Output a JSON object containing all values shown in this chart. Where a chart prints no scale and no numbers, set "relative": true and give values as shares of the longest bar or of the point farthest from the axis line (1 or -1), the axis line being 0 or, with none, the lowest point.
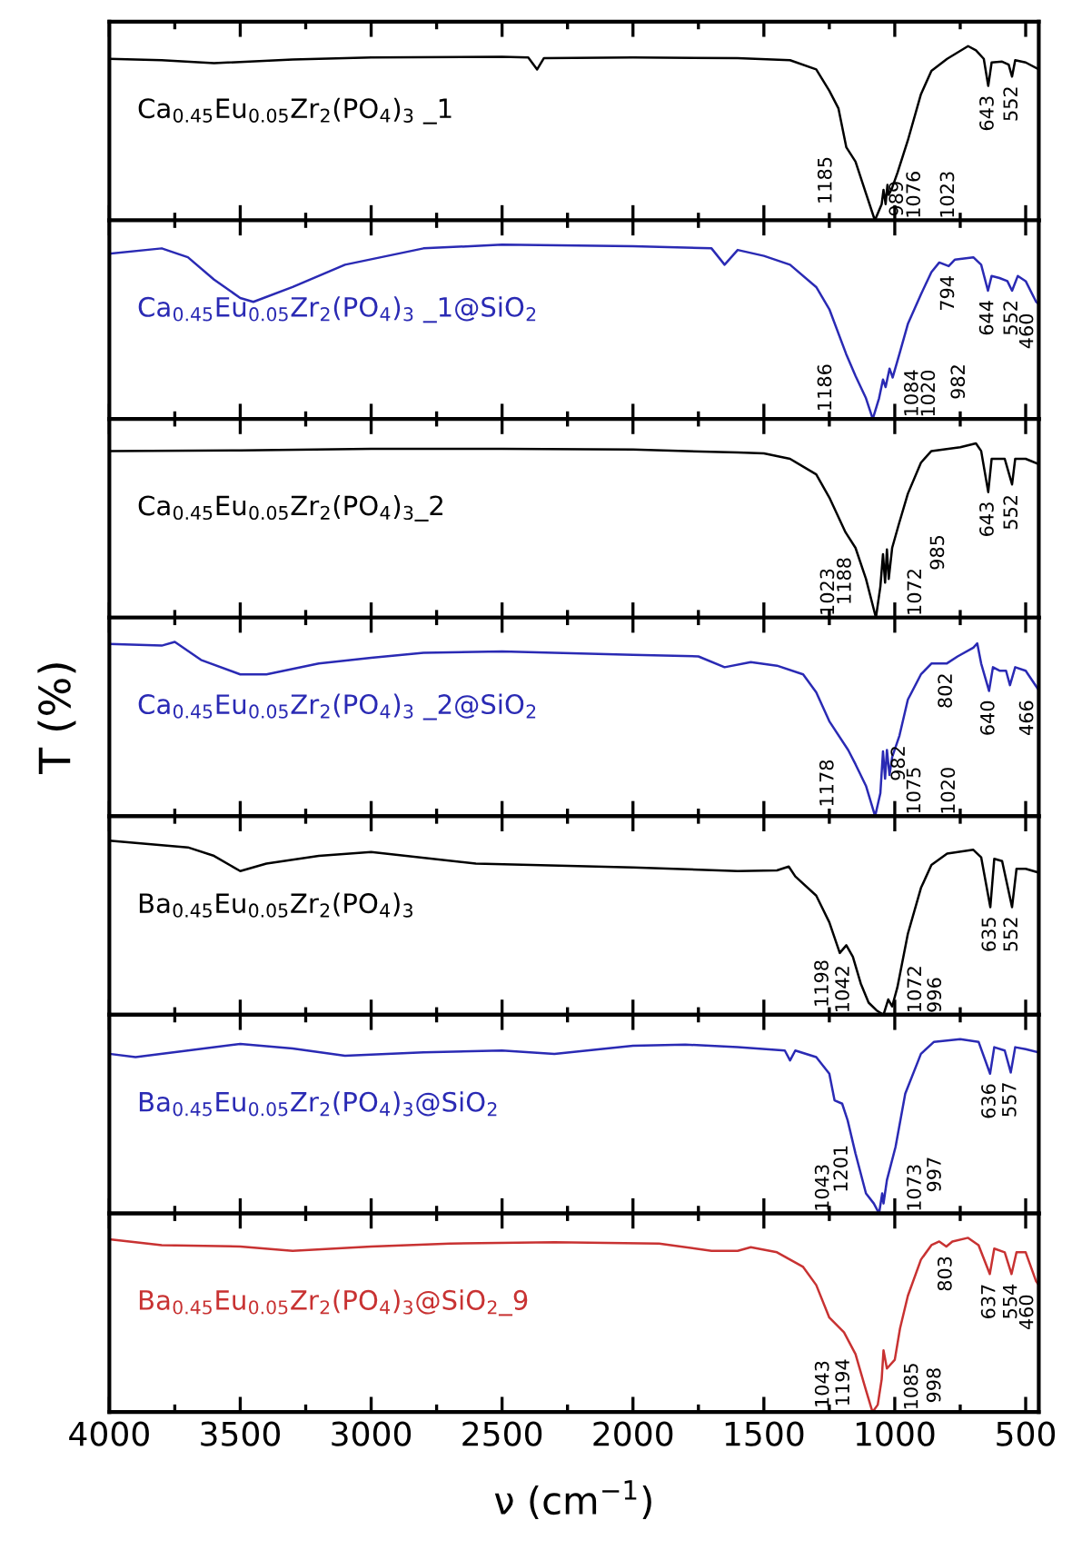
{
  "chart_data": [
    {
      "type": "line",
      "relative": true,
      "xlim": [
        4000,
        450
      ],
      "xticks": [
        4000,
        3500,
        3000,
        2500,
        2000,
        1500,
        1000,
        500
      ],
      "tick_labels": false,
      "x": [
        4000,
        3800,
        3600,
        3300,
        3000,
        2500,
        2400,
        2366,
        2340,
        2000,
        1600,
        1400,
        1300,
        1250,
        1215,
        1185,
        1150,
        1110,
        1076,
        1050,
        1043,
        1035,
        1028,
        1023,
        1010,
        989,
        950,
        900,
        860,
        800,
        720,
        690,
        660,
        643,
        630,
        590,
        565,
        552,
        540,
        500,
        450
      ],
      "series": [
        {
          "name": "Ca$_{0.45}$Eu$_{0.05}$Zr$_{2}$(PO$_{4}$)$_{3}$ _1",
          "color": "#000000",
          "values": [
            0.927,
            0.919,
            0.902,
            0.923,
            0.935,
            0.939,
            0.935,
            0.866,
            0.931,
            0.935,
            0.931,
            0.919,
            0.866,
            0.744,
            0.642,
            0.419,
            0.337,
            0.154,
            0,
            0.093,
            0.175,
            0.093,
            0.203,
            0.146,
            0.187,
            0.276,
            0.459,
            0.724,
            0.858,
            0.927,
            1,
            0.976,
            0.927,
            0.772,
            0.906,
            0.911,
            0.894,
            0.825,
            0.919,
            0.906,
            0.866
          ]
        }
      ],
      "annotations": [
        {
          "text": "1185",
          "x": 1185,
          "y": 0.42
        },
        {
          "text": "1076",
          "x": 1076,
          "y": 0
        },
        {
          "text": "1023",
          "x": 1023,
          "y": 0.15
        },
        {
          "text": "989",
          "x": 989,
          "y": 0.28
        },
        {
          "text": "643",
          "x": 643,
          "y": 0.77
        },
        {
          "text": "552",
          "x": 552,
          "y": 0.83
        }
      ]
    },
    {
      "type": "line",
      "relative": true,
      "xlim": [
        4000,
        450
      ],
      "xticks": [
        4000,
        3500,
        3000,
        2500,
        2000,
        1500,
        1000,
        500
      ],
      "tick_labels": false,
      "x": [
        4000,
        3800,
        3700,
        3600,
        3500,
        3450,
        3300,
        3100,
        2800,
        2500,
        2000,
        1700,
        1650,
        1600,
        1500,
        1400,
        1300,
        1250,
        1186,
        1150,
        1110,
        1084,
        1060,
        1045,
        1035,
        1020,
        1008,
        982,
        950,
        900,
        860,
        830,
        794,
        770,
        700,
        670,
        644,
        630,
        600,
        570,
        552,
        530,
        500,
        460,
        450
      ],
      "series": [
        {
          "name": "Ca$_{0.45}$Eu$_{0.05}$Zr$_{2}$(PO$_{4}$)$_{3}$ _1@SiO$_{2}$",
          "color": "#2a2ab4",
          "values": [
            0.949,
            0.979,
            0.928,
            0.8,
            0.694,
            0.672,
            0.757,
            0.885,
            0.979,
            1,
            0.991,
            0.979,
            0.885,
            0.97,
            0.936,
            0.885,
            0.757,
            0.63,
            0.374,
            0.247,
            0.119,
            0,
            0.119,
            0.226,
            0.183,
            0.289,
            0.238,
            0.374,
            0.545,
            0.715,
            0.843,
            0.898,
            0.877,
            0.915,
            0.928,
            0.885,
            0.736,
            0.821,
            0.809,
            0.791,
            0.736,
            0.821,
            0.791,
            0.672,
            0.66
          ]
        }
      ],
      "annotations": [
        {
          "text": "1186",
          "x": 1186,
          "y": 0.37
        },
        {
          "text": "1084",
          "x": 1084,
          "y": 0
        },
        {
          "text": "1020",
          "x": 1020,
          "y": 0.29
        },
        {
          "text": "982",
          "x": 982,
          "y": 0.37
        },
        {
          "text": "794",
          "x": 794,
          "y": 0.88
        },
        {
          "text": "644",
          "x": 644,
          "y": 0.74
        },
        {
          "text": "552",
          "x": 552,
          "y": 0.74
        },
        {
          "text": "460",
          "x": 460,
          "y": 0.67
        }
      ]
    },
    {
      "type": "line",
      "relative": true,
      "xlim": [
        4000,
        450
      ],
      "xticks": [
        4000,
        3500,
        3000,
        2500,
        2000,
        1500,
        1000,
        500
      ],
      "tick_labels": false,
      "x": [
        4000,
        3500,
        3000,
        2500,
        2000,
        1600,
        1500,
        1400,
        1300,
        1250,
        1188,
        1150,
        1110,
        1072,
        1055,
        1045,
        1037,
        1030,
        1023,
        1010,
        985,
        950,
        900,
        860,
        750,
        690,
        670,
        643,
        630,
        580,
        552,
        540,
        500,
        450
      ],
      "series": [
        {
          "name": "Ca$_{0.45}$Eu$_{0.05}$Zr$_{2}$(PO$_{4}$)$_{3}$_2",
          "color": "#000000",
          "values": [
            0.956,
            0.96,
            0.969,
            0.969,
            0.964,
            0.947,
            0.942,
            0.911,
            0.822,
            0.689,
            0.489,
            0.4,
            0.222,
            0,
            0.178,
            0.364,
            0.2,
            0.391,
            0.222,
            0.4,
            0.533,
            0.711,
            0.889,
            0.956,
            0.978,
            1,
            0.956,
            0.72,
            0.911,
            0.911,
            0.764,
            0.911,
            0.911,
            0.88
          ]
        }
      ],
      "annotations": [
        {
          "text": "1188",
          "x": 1188,
          "y": 0.49
        },
        {
          "text": "1072",
          "x": 1072,
          "y": 0
        },
        {
          "text": "1023",
          "x": 1023,
          "y": 0.22
        },
        {
          "text": "985",
          "x": 985,
          "y": 0.53
        },
        {
          "text": "643",
          "x": 643,
          "y": 0.72
        },
        {
          "text": "552",
          "x": 552,
          "y": 0.76
        }
      ]
    },
    {
      "type": "line",
      "relative": true,
      "xlim": [
        4000,
        450
      ],
      "xticks": [
        4000,
        3500,
        3000,
        2500,
        2000,
        1500,
        1000,
        500
      ],
      "tick_labels": false,
      "ylabel": "T (%)",
      "x": [
        4000,
        3800,
        3750,
        3650,
        3500,
        3400,
        3200,
        3000,
        2800,
        2500,
        2000,
        1750,
        1650,
        1550,
        1450,
        1350,
        1300,
        1250,
        1178,
        1150,
        1110,
        1075,
        1055,
        1045,
        1037,
        1030,
        1020,
        1010,
        982,
        950,
        900,
        860,
        802,
        760,
        700,
        685,
        670,
        640,
        625,
        600,
        575,
        560,
        540,
        500,
        450
      ],
      "series": [
        {
          "name": "Ca$_{0.45}$Eu$_{0.05}$Zr$_{2}$(PO$_{4}$)$_{3}$ _2@SiO$_{2}$",
          "color": "#2a2ab4",
          "values": [
            0.988,
            0.979,
            1,
            0.897,
            0.814,
            0.814,
            0.876,
            0.909,
            0.938,
            0.946,
            0.926,
            0.917,
            0.855,
            0.884,
            0.864,
            0.814,
            0.711,
            0.545,
            0.38,
            0.298,
            0.174,
            0,
            0.132,
            0.372,
            0.215,
            0.38,
            0.236,
            0.339,
            0.463,
            0.669,
            0.814,
            0.876,
            0.876,
            0.917,
            0.967,
            0.992,
            0.876,
            0.719,
            0.855,
            0.835,
            0.835,
            0.752,
            0.855,
            0.835,
            0.723
          ]
        }
      ],
      "annotations": [
        {
          "text": "1178",
          "x": 1178,
          "y": 0.38
        },
        {
          "text": "1075",
          "x": 1075,
          "y": 0
        },
        {
          "text": "1020",
          "x": 1020,
          "y": 0.24
        },
        {
          "text": "982",
          "x": 982,
          "y": 0.46
        },
        {
          "text": "802",
          "x": 802,
          "y": 0.88
        },
        {
          "text": "640",
          "x": 640,
          "y": 0.72
        },
        {
          "text": "466",
          "x": 466,
          "y": 0.72
        }
      ]
    },
    {
      "type": "line",
      "relative": true,
      "xlim": [
        4000,
        450
      ],
      "xticks": [
        4000,
        3500,
        3000,
        2500,
        2000,
        1500,
        1000,
        500
      ],
      "tick_labels": false,
      "x": [
        4000,
        3700,
        3600,
        3500,
        3400,
        3200,
        3000,
        2600,
        2000,
        1600,
        1450,
        1405,
        1380,
        1300,
        1250,
        1210,
        1185,
        1160,
        1130,
        1100,
        1070,
        1043,
        1025,
        1010,
        990,
        950,
        900,
        860,
        800,
        700,
        670,
        635,
        620,
        590,
        552,
        535,
        500,
        450
      ],
      "series": [
        {
          "name": "Ba$_{0.45}$Eu$_{0.05}$Zr$_{2}$(PO$_{4}$)$_{3}$",
          "color": "#000000",
          "values": [
            1,
            0.961,
            0.912,
            0.825,
            0.868,
            0.912,
            0.934,
            0.868,
            0.846,
            0.825,
            0.829,
            0.851,
            0.794,
            0.684,
            0.531,
            0.355,
            0.399,
            0.333,
            0.18,
            0.07,
            0.026,
            0,
            0.088,
            0.048,
            0.158,
            0.465,
            0.728,
            0.86,
            0.925,
            0.947,
            0.904,
            0.618,
            0.895,
            0.882,
            0.618,
            0.838,
            0.838,
            0.816
          ]
        }
      ],
      "annotations": [
        {
          "text": "1198",
          "x": 1198,
          "y": 0.37
        },
        {
          "text": "1072",
          "x": 1072,
          "y": 0.03
        },
        {
          "text": "1042",
          "x": 1042,
          "y": 0
        },
        {
          "text": "996",
          "x": 996,
          "y": 0.13
        },
        {
          "text": "635",
          "x": 635,
          "y": 0.62
        },
        {
          "text": "552",
          "x": 552,
          "y": 0.62
        }
      ]
    },
    {
      "type": "line",
      "relative": true,
      "xlim": [
        4000,
        450
      ],
      "xticks": [
        4000,
        3500,
        3000,
        2500,
        2000,
        1500,
        1000,
        500
      ],
      "tick_labels": false,
      "x": [
        4000,
        3900,
        3700,
        3500,
        3300,
        3100,
        2800,
        2500,
        2300,
        2000,
        1800,
        1600,
        1420,
        1400,
        1380,
        1300,
        1250,
        1230,
        1201,
        1180,
        1150,
        1110,
        1080,
        1060,
        1048,
        1043,
        1030,
        997,
        960,
        900,
        850,
        750,
        680,
        636,
        620,
        580,
        557,
        540,
        500,
        450
      ],
      "series": [
        {
          "name": "Ba$_{0.45}$Eu$_{0.05}$Zr$_{2}$(PO$_{4}$)$_{3}$@SiO$_{2}$",
          "color": "#2a2ab4",
          "values": [
            0.916,
            0.897,
            0.935,
            0.973,
            0.947,
            0.905,
            0.924,
            0.935,
            0.916,
            0.962,
            0.969,
            0.954,
            0.935,
            0.878,
            0.935,
            0.897,
            0.802,
            0.649,
            0.63,
            0.534,
            0.344,
            0.115,
            0.057,
            0,
            0.115,
            0.057,
            0.191,
            0.382,
            0.687,
            0.916,
            0.985,
            1,
            0.985,
            0.802,
            0.954,
            0.935,
            0.809,
            0.954,
            0.943,
            0.924
          ]
        }
      ],
      "annotations": [
        {
          "text": "1201",
          "x": 1201,
          "y": 0.63
        },
        {
          "text": "1073",
          "x": 1073,
          "y": 0.08
        },
        {
          "text": "1043",
          "x": 1043,
          "y": 0.06
        },
        {
          "text": "997",
          "x": 997,
          "y": 0.38
        },
        {
          "text": "636",
          "x": 636,
          "y": 0.8
        },
        {
          "text": "557",
          "x": 557,
          "y": 0.81
        }
      ]
    },
    {
      "type": "line",
      "relative": true,
      "xlim": [
        4000,
        450
      ],
      "xticks": [
        4000,
        3500,
        3000,
        2500,
        2000,
        1500,
        1000,
        500
      ],
      "tick_labels": "x",
      "xlabel": "ν (cm$^{−1}$)",
      "x": [
        4000,
        3800,
        3500,
        3300,
        3000,
        2700,
        2300,
        1900,
        1700,
        1600,
        1550,
        1450,
        1350,
        1300,
        1250,
        1194,
        1150,
        1110,
        1085,
        1065,
        1050,
        1043,
        1030,
        1000,
        980,
        950,
        900,
        860,
        830,
        803,
        780,
        720,
        680,
        637,
        620,
        580,
        554,
        535,
        500,
        460,
        450
      ],
      "series": [
        {
          "name": "Ba$_{0.45}$Eu$_{0.05}$Zr$_{2}$(PO$_{4}$)$_{3}$@SiO$_{2}$_9",
          "color": "#c83232",
          "values": [
            0.992,
            0.958,
            0.95,
            0.925,
            0.95,
            0.967,
            0.975,
            0.967,
            0.925,
            0.925,
            0.946,
            0.917,
            0.833,
            0.729,
            0.542,
            0.458,
            0.333,
            0.125,
            0,
            0.042,
            0.188,
            0.354,
            0.25,
            0.3,
            0.479,
            0.667,
            0.875,
            0.958,
            0.979,
            0.95,
            0.979,
            1,
            0.958,
            0.792,
            0.938,
            0.917,
            0.792,
            0.917,
            0.917,
            0.75,
            0.729
          ]
        }
      ],
      "annotations": [
        {
          "text": "1194",
          "x": 1194,
          "y": 0.46
        },
        {
          "text": "1085",
          "x": 1085,
          "y": 0
        },
        {
          "text": "1043",
          "x": 1043,
          "y": 0.35
        },
        {
          "text": "998",
          "x": 998,
          "y": 0.31
        },
        {
          "text": "803",
          "x": 803,
          "y": 0.95
        },
        {
          "text": "637",
          "x": 637,
          "y": 0.79
        },
        {
          "text": "554",
          "x": 554,
          "y": 0.79
        },
        {
          "text": "460",
          "x": 460,
          "y": 0.75
        }
      ]
    }
  ]
}
